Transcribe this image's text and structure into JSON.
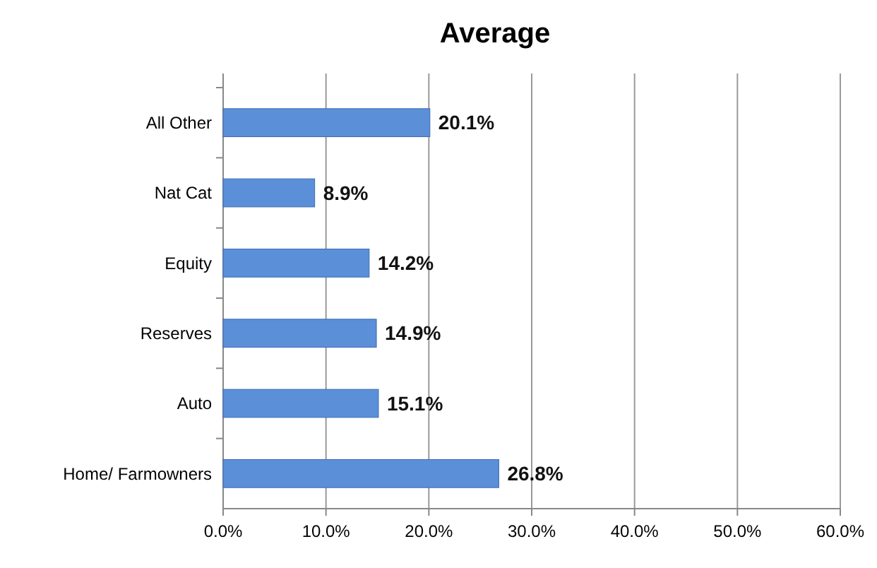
{
  "chart_data": {
    "type": "bar",
    "orientation": "horizontal",
    "title": "Average",
    "categories": [
      "All Other",
      "Nat Cat",
      "Equity",
      "Reserves",
      "Auto",
      "Home/ Farmowners"
    ],
    "values": [
      20.1,
      8.9,
      14.2,
      14.9,
      15.1,
      26.8
    ],
    "value_labels": [
      "20.1%",
      "8.9%",
      "14.2%",
      "14.9%",
      "15.1%",
      "26.8%"
    ],
    "color": "#5b8fd8",
    "xlim": [
      0,
      60
    ],
    "xticks": [
      {
        "value": 0,
        "label": "0.0%"
      },
      {
        "value": 10,
        "label": "10.0%"
      },
      {
        "value": 20,
        "label": "20.0%"
      },
      {
        "value": 30,
        "label": "30.0%"
      },
      {
        "value": 40,
        "label": "40.0%"
      },
      {
        "value": 50,
        "label": "50.0%"
      },
      {
        "value": 60,
        "label": "60.0%"
      }
    ],
    "grid": "x"
  }
}
